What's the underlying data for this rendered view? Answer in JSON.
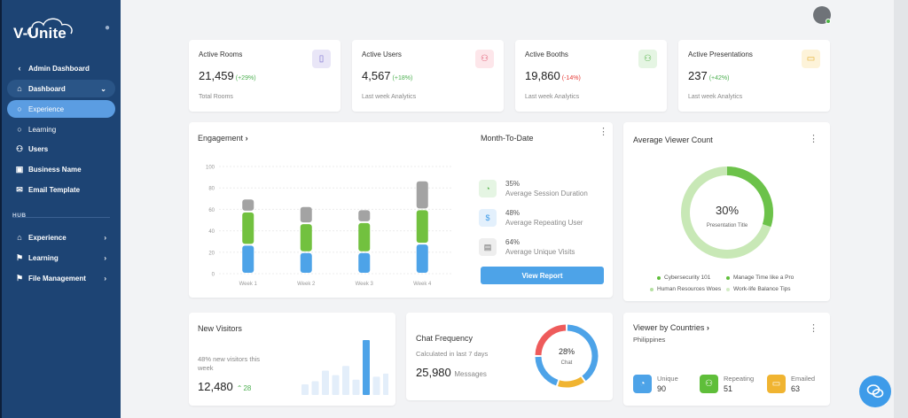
{
  "app": {
    "logo_text": "V-Unite"
  },
  "sidebar": {
    "back_label": "Admin Dashboard",
    "items": [
      {
        "label": "Dashboard"
      },
      {
        "label": "Experience"
      },
      {
        "label": "Learning"
      },
      {
        "label": "Users"
      },
      {
        "label": "Business Name"
      },
      {
        "label": "Email Template"
      }
    ],
    "hub_label": "HUB",
    "hub_items": [
      {
        "label": "Experience"
      },
      {
        "label": "Learning"
      },
      {
        "label": "File Management"
      }
    ]
  },
  "stats": [
    {
      "title": "Active Rooms",
      "value": "21,459",
      "change": "(+29%)",
      "sub": "Total Rooms",
      "icon": "document-icon",
      "color": "#e9e6f7",
      "icon_color": "#7b6fd0",
      "change_color": "#4caf50"
    },
    {
      "title": "Active Users",
      "value": "4,567",
      "change": "(+18%)",
      "sub": "Last week Analytics",
      "icon": "user-plus-icon",
      "color": "#fde6ea",
      "icon_color": "#e0566f",
      "change_color": "#4caf50"
    },
    {
      "title": "Active Booths",
      "value": "19,860",
      "change": "(-14%)",
      "sub": "Last week Analytics",
      "icon": "users-icon",
      "color": "#e5f5e3",
      "icon_color": "#52b347",
      "change_color": "#e53935"
    },
    {
      "title": "Active Presentations",
      "value": "237",
      "change": "(+42%)",
      "sub": "Last week Analytics",
      "icon": "presentation-icon",
      "color": "#fdf3d9",
      "icon_color": "#e3ad2a",
      "change_color": "#4caf50"
    }
  ],
  "engagement": {
    "title": "Engagement",
    "month_title": "Month-To-Date",
    "metrics": [
      {
        "pct": "35%",
        "label": "Average Session Duration",
        "icon": "pie-icon",
        "bg": "#e5f5e3",
        "fg": "#52b347"
      },
      {
        "pct": "48%",
        "label": "Average Repeating User",
        "icon": "dollar-icon",
        "bg": "#e3f0fc",
        "fg": "#3d9be9"
      },
      {
        "pct": "64%",
        "label": "Average Unique Visits",
        "icon": "card-icon",
        "bg": "#eeeeee",
        "fg": "#666666"
      }
    ],
    "button_label": "View Report"
  },
  "chart_data": [
    {
      "type": "bar",
      "title": "Engagement",
      "categories": [
        "Week 1",
        "Week 2",
        "Week 3",
        "Week 4"
      ],
      "series": [
        {
          "values": [
            27,
            20,
            20,
            28
          ],
          "color": "#4da3e8"
        },
        {
          "values": [
            31,
            27,
            28,
            32
          ],
          "color": "#72c13f"
        },
        {
          "values": [
            12,
            16,
            12,
            27
          ],
          "color": "#a3a3a3"
        }
      ],
      "ylim": [
        0,
        100
      ],
      "yticks": [
        0,
        20,
        40,
        60,
        80,
        100
      ],
      "grid": true
    },
    {
      "type": "pie",
      "title": "Average Viewer Count",
      "center_value": "30%",
      "center_label": "Presentation Title",
      "legend": [
        "Cybersecurity 101",
        "Manage Time like a Pro",
        "Human Resources Woes",
        "Work-life Balance Tips"
      ],
      "legend_colors": [
        "#5fbe3a",
        "#5fbe3a",
        "#b5e0a2",
        "#d3ecc5"
      ],
      "values": [
        30,
        70
      ],
      "colors": [
        "#6cc24a",
        "#c8e8b6"
      ]
    },
    {
      "type": "bar",
      "title": "New Visitors",
      "values": [
        7,
        9,
        16,
        13,
        19,
        10,
        36,
        12,
        14
      ],
      "highlight_index": 6,
      "colors": [
        "#e3eefa",
        "#4da3e8"
      ]
    },
    {
      "type": "pie",
      "title": "Chat Frequency",
      "center_value": "28%",
      "center_label": "Chat",
      "values": [
        40,
        15,
        20,
        25
      ],
      "colors": [
        "#4da3e8",
        "#f0b431",
        "#4da3e8",
        "#ee5b5b"
      ]
    }
  ],
  "viewer_count": {
    "title": "Average Viewer Count"
  },
  "new_visitors": {
    "title": "New Visitors",
    "desc": "48% new visitors this week",
    "value": "12,480",
    "change": "28"
  },
  "chat_frequency": {
    "title": "Chat Frequency",
    "sub": "Calculated in last 7 days",
    "value": "25,980",
    "unit": "Messages"
  },
  "countries": {
    "title": "Viewer by Countries",
    "country": "Philippines",
    "metrics": [
      {
        "label": "Unique",
        "value": "90",
        "color": "#4da3e8",
        "icon": "pie-icon"
      },
      {
        "label": "Repeating",
        "value": "51",
        "color": "#5fbe3a",
        "icon": "user-icon"
      },
      {
        "label": "Emailed",
        "value": "63",
        "color": "#f0b431",
        "icon": "mail-icon"
      }
    ]
  }
}
